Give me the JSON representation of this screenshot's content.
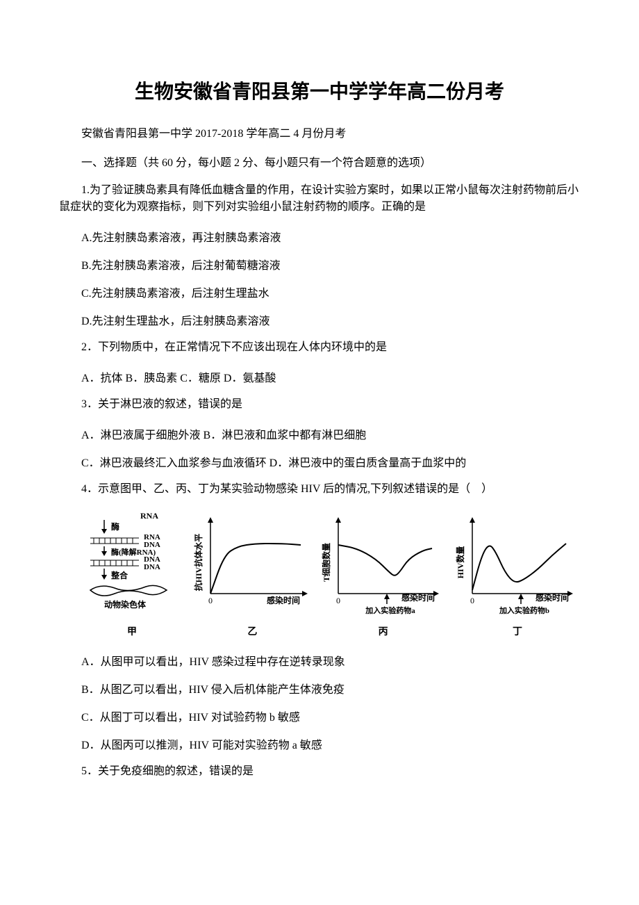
{
  "title": "生物安徽省青阳县第一中学学年高二份月考",
  "subtitle": "安徽省青阳县第一中学 2017-2018 学年高二 4 月份月考",
  "section_header": "一、选择题（共 60 分，每小题 2 分、每小题只有一个符合题意的选项）",
  "q1": {
    "stem": "1.为了验证胰岛素具有降低血糖含量的作用，在设计实验方案时，如果以正常小鼠每次注射药物前后小鼠症状的变化为观察指标，则下列对实验组小鼠注射药物的顺序。正确的是",
    "A": "A.先注射胰岛素溶液，再注射胰岛素溶液",
    "B": "B.先注射胰岛素溶液，后注射葡萄糖溶液",
    "C": "C.先注射胰岛素溶液，后注射生理盐水",
    "D": "D.先注射生理盐水，后注射胰岛素溶液"
  },
  "q2": {
    "stem": "2．下列物质中，在正常情况下不应该出现在人体内环境中的是",
    "opts": "A．抗体 B．胰岛素 C．糖原 D．氨基酸"
  },
  "q3": {
    "stem": "3．关于淋巴液的叙述，错误的是",
    "AB": "A．淋巴液属于细胞外液 B．淋巴液和血浆中都有淋巴细胞",
    "CD": "C．淋巴液最终汇入血浆参与血液循环 D．淋巴液中的蛋白质含量高于血浆中的"
  },
  "q4": {
    "stem": "4．示意图甲、乙、丙、丁为某实验动物感染 HIV 后的情况,下列叙述错误的是（　）",
    "A": "A．从图甲可以看出，HIV 感染过程中存在逆转录现象",
    "B": "B．从图乙可以看出，HIV 侵入后机体能产生体液免疫",
    "C": "C．从图丁可以看出，HIV 对试验药物 b 敏感",
    "D": "D．从图丙可以推测，HIV 可能对实验药物 a 敏感"
  },
  "q5": {
    "stem": "5．关于免疫细胞的叙述，错误的是"
  },
  "fig": {
    "jia": {
      "label": "甲",
      "top": "RNA",
      "rows": [
        "RNA",
        "DNA",
        "DNA",
        "DNA"
      ],
      "annotations": [
        "酶",
        "酶(降解RNA)",
        "整合"
      ],
      "bottom": "动物染色体"
    },
    "yi": {
      "label": "乙",
      "ylabel": "抗HIV抗体水平",
      "xlabel": "感染时间",
      "curve": [
        [
          0,
          0
        ],
        [
          15,
          55
        ],
        [
          30,
          68
        ],
        [
          50,
          72
        ],
        [
          80,
          72
        ],
        [
          100,
          70
        ]
      ],
      "stroke": "#000000"
    },
    "bing": {
      "label": "丙",
      "ylabel": "T细胞数量",
      "xlabel": "感染时间",
      "arrow_label": "加入实验药物a",
      "curve": [
        [
          0,
          70
        ],
        [
          20,
          65
        ],
        [
          40,
          50
        ],
        [
          55,
          30
        ],
        [
          60,
          25
        ],
        [
          65,
          30
        ],
        [
          75,
          50
        ],
        [
          90,
          62
        ],
        [
          100,
          65
        ]
      ],
      "stroke": "#000000"
    },
    "ding": {
      "label": "丁",
      "ylabel": "HIV数量",
      "xlabel": "感染时间",
      "arrow_label": "加入实验药物b",
      "curve": [
        [
          0,
          5
        ],
        [
          10,
          55
        ],
        [
          18,
          72
        ],
        [
          25,
          60
        ],
        [
          35,
          30
        ],
        [
          45,
          15
        ],
        [
          55,
          20
        ],
        [
          70,
          35
        ],
        [
          85,
          55
        ],
        [
          100,
          72
        ]
      ],
      "stroke": "#000000"
    }
  }
}
